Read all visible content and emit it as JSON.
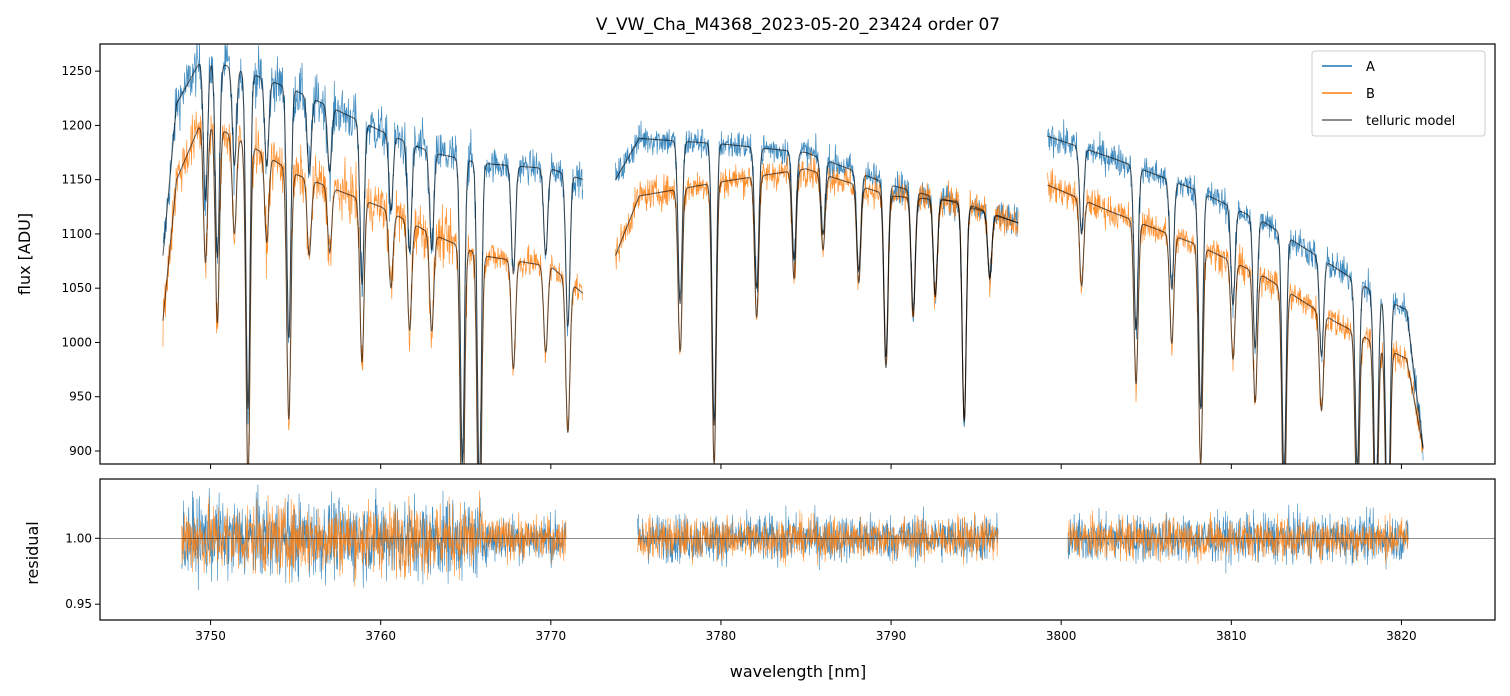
{
  "chart_data": {
    "type": "line",
    "title": "V_VW_Cha_M4368_2023-05-20_23424  order 07",
    "xlabel": "wavelength [nm]",
    "xlim": [
      3743.5,
      3825.5
    ],
    "xticks": [
      3750,
      3760,
      3770,
      3780,
      3790,
      3800,
      3810,
      3820
    ],
    "xtick_labels": [
      "3750",
      "3760",
      "3770",
      "3780",
      "3790",
      "3800",
      "3810",
      "3820"
    ],
    "top": {
      "ylabel": "flux [ADU]",
      "ylim": [
        888,
        1275
      ],
      "yticks": [
        900,
        950,
        1000,
        1050,
        1100,
        1150,
        1200,
        1250
      ],
      "ytick_labels": [
        "900",
        "950",
        "1000",
        "1050",
        "1100",
        "1150",
        "1200",
        "1250"
      ],
      "segments": [
        [
          3747.2,
          3771.9
        ],
        [
          3773.8,
          3797.5
        ],
        [
          3799.2,
          3821.3
        ]
      ],
      "continuum": {
        "A": [
          [
            3747.2,
            1080
          ],
          [
            3748.0,
            1220
          ],
          [
            3749.5,
            1262
          ],
          [
            3752.0,
            1250
          ],
          [
            3755.0,
            1232
          ],
          [
            3760.0,
            1195
          ],
          [
            3763.0,
            1175
          ],
          [
            3766.0,
            1165
          ],
          [
            3770.0,
            1160
          ],
          [
            3771.9,
            1150
          ],
          [
            3773.8,
            1150
          ],
          [
            3775.2,
            1188
          ],
          [
            3780.0,
            1183
          ],
          [
            3785.0,
            1175
          ],
          [
            3790.0,
            1145
          ],
          [
            3794.0,
            1128
          ],
          [
            3797.5,
            1110
          ],
          [
            3799.2,
            1190
          ],
          [
            3803.0,
            1170
          ],
          [
            3808.0,
            1140
          ],
          [
            3812.0,
            1110
          ],
          [
            3816.0,
            1070
          ],
          [
            3819.0,
            1040
          ],
          [
            3820.3,
            1030
          ],
          [
            3821.3,
            900
          ]
        ],
        "B": [
          [
            3747.2,
            1020
          ],
          [
            3748.0,
            1150
          ],
          [
            3749.5,
            1205
          ],
          [
            3752.0,
            1185
          ],
          [
            3755.0,
            1155
          ],
          [
            3760.0,
            1125
          ],
          [
            3763.0,
            1100
          ],
          [
            3766.0,
            1080
          ],
          [
            3770.0,
            1070
          ],
          [
            3771.9,
            1045
          ],
          [
            3773.8,
            1080
          ],
          [
            3775.2,
            1135
          ],
          [
            3780.0,
            1148
          ],
          [
            3785.0,
            1160
          ],
          [
            3790.0,
            1135
          ],
          [
            3794.0,
            1130
          ],
          [
            3797.5,
            1110
          ],
          [
            3799.2,
            1145
          ],
          [
            3803.0,
            1120
          ],
          [
            3808.0,
            1090
          ],
          [
            3812.0,
            1060
          ],
          [
            3816.0,
            1020
          ],
          [
            3819.0,
            995
          ],
          [
            3820.3,
            985
          ],
          [
            3821.3,
            900
          ]
        ]
      },
      "absorption_lines": [
        [
          3749.7,
          130
        ],
        [
          3750.4,
          180
        ],
        [
          3751.4,
          90
        ],
        [
          3752.2,
          310
        ],
        [
          3753.3,
          80
        ],
        [
          3754.6,
          230
        ],
        [
          3755.8,
          70
        ],
        [
          3757.0,
          60
        ],
        [
          3758.9,
          150
        ],
        [
          3760.6,
          70
        ],
        [
          3761.7,
          100
        ],
        [
          3763.0,
          90
        ],
        [
          3764.8,
          280
        ],
        [
          3765.8,
          300
        ],
        [
          3767.8,
          100
        ],
        [
          3769.7,
          80
        ],
        [
          3771.0,
          140
        ],
        [
          3777.6,
          150
        ],
        [
          3779.6,
          260
        ],
        [
          3782.1,
          130
        ],
        [
          3784.3,
          100
        ],
        [
          3786.0,
          70
        ],
        [
          3788.1,
          90
        ],
        [
          3789.7,
          160
        ],
        [
          3791.3,
          110
        ],
        [
          3792.6,
          90
        ],
        [
          3794.3,
          200
        ],
        [
          3795.8,
          60
        ],
        [
          3801.2,
          80
        ],
        [
          3804.4,
          150
        ],
        [
          3806.5,
          100
        ],
        [
          3808.2,
          200
        ],
        [
          3810.1,
          90
        ],
        [
          3811.4,
          120
        ],
        [
          3813.1,
          220
        ],
        [
          3815.3,
          90
        ],
        [
          3817.4,
          170
        ],
        [
          3818.5,
          200
        ],
        [
          3819.2,
          230
        ]
      ]
    },
    "bottom": {
      "ylabel": "residual",
      "ylim": [
        0.938,
        1.045
      ],
      "yticks": [
        0.95,
        1.0
      ],
      "ytick_labels": [
        "0.95",
        "1.00"
      ],
      "reference_line": 1.0,
      "segments": [
        [
          3748.3,
          3770.9
        ],
        [
          3775.1,
          3796.3
        ],
        [
          3800.4,
          3820.4
        ]
      ]
    },
    "series": [
      {
        "name": "A",
        "color": "#1f77b4"
      },
      {
        "name": "B",
        "color": "#ff7f0e"
      },
      {
        "name": "telluric model",
        "color": "#000000"
      }
    ],
    "legend_position": "top-right"
  }
}
